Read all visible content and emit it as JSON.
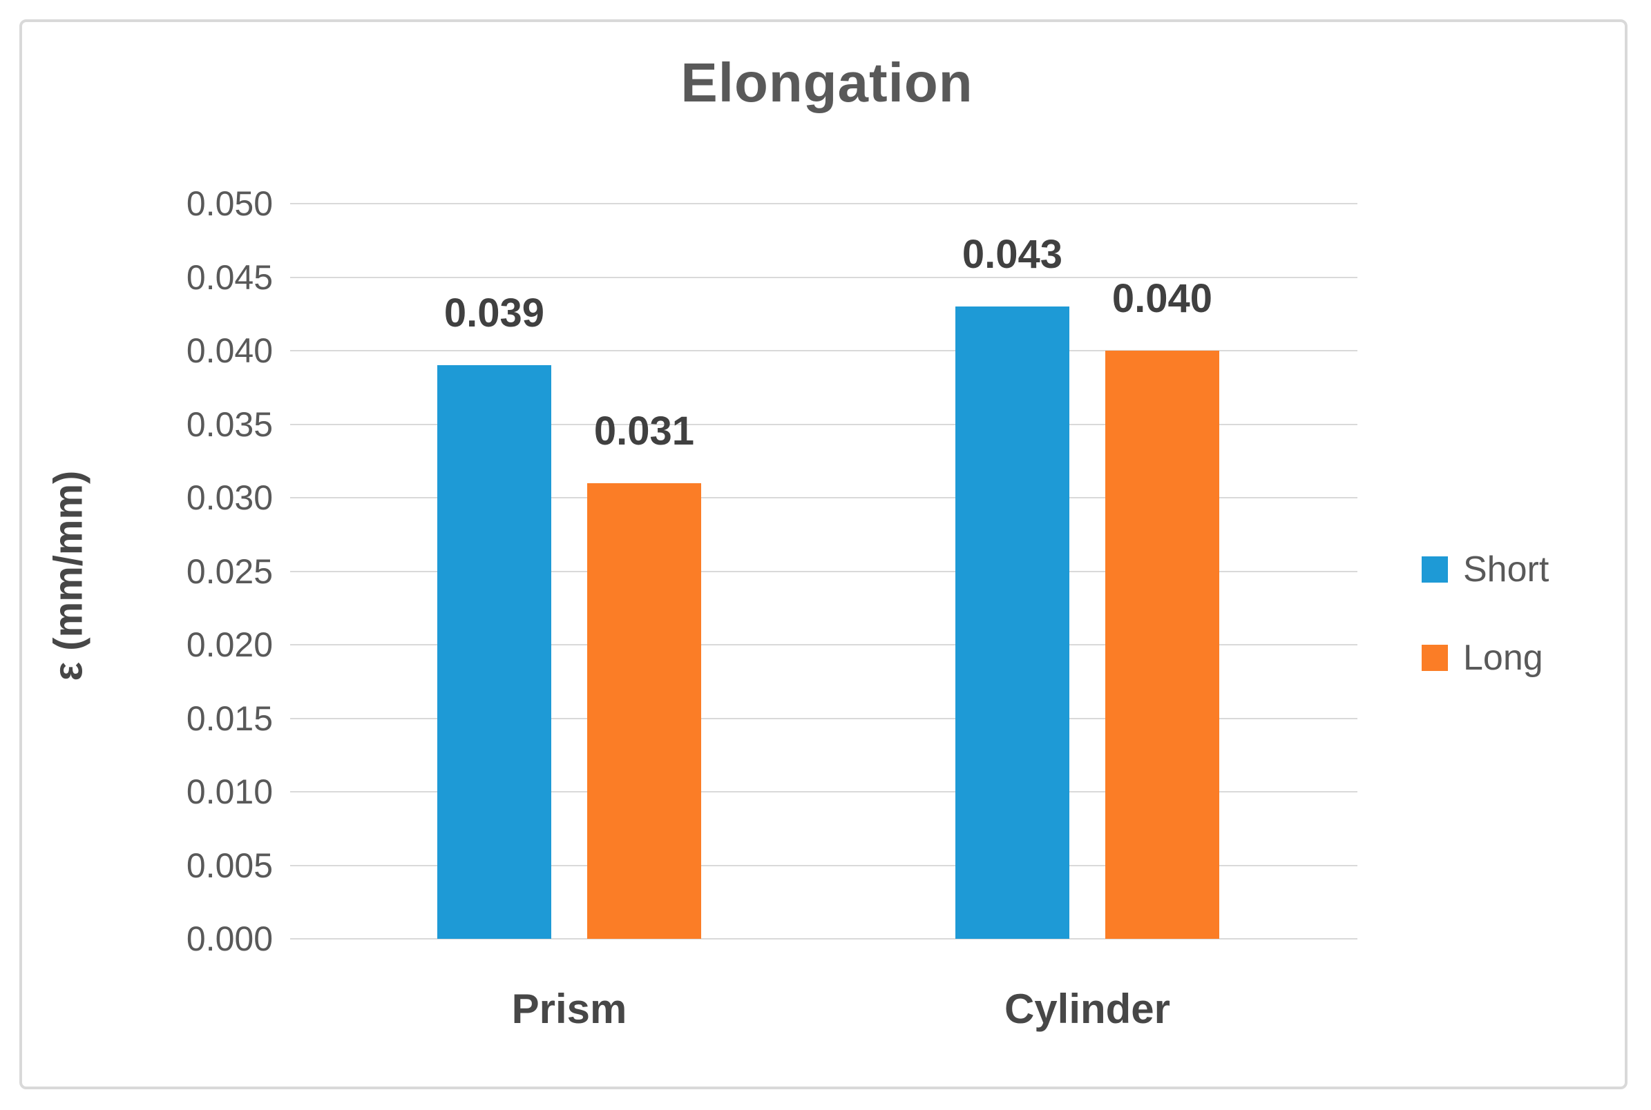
{
  "chart_data": {
    "type": "bar",
    "title": "Elongation",
    "ylabel": "ε (mm/mm)",
    "xlabel": "",
    "categories": [
      "Prism",
      "Cylinder"
    ],
    "series": [
      {
        "name": "Short",
        "color": "#1E9AD6",
        "values": [
          0.039,
          0.043
        ],
        "labels": [
          "0.039",
          "0.043"
        ]
      },
      {
        "name": "Long",
        "color": "#FB7D26",
        "values": [
          0.031,
          0.04
        ],
        "labels": [
          "0.031",
          "0.040"
        ]
      }
    ],
    "ylim": [
      0.0,
      0.05
    ],
    "ytick_step": 0.005,
    "ytick_labels": [
      "0.000",
      "0.005",
      "0.010",
      "0.015",
      "0.020",
      "0.025",
      "0.030",
      "0.035",
      "0.040",
      "0.045",
      "0.050"
    ],
    "grid": true,
    "legend_position": "right",
    "colors": {
      "gridline": "#d9d9d9",
      "border": "#d9d9d9",
      "axis_text": "#595959",
      "data_label_text": "#404040",
      "title_text": "#595959"
    }
  }
}
